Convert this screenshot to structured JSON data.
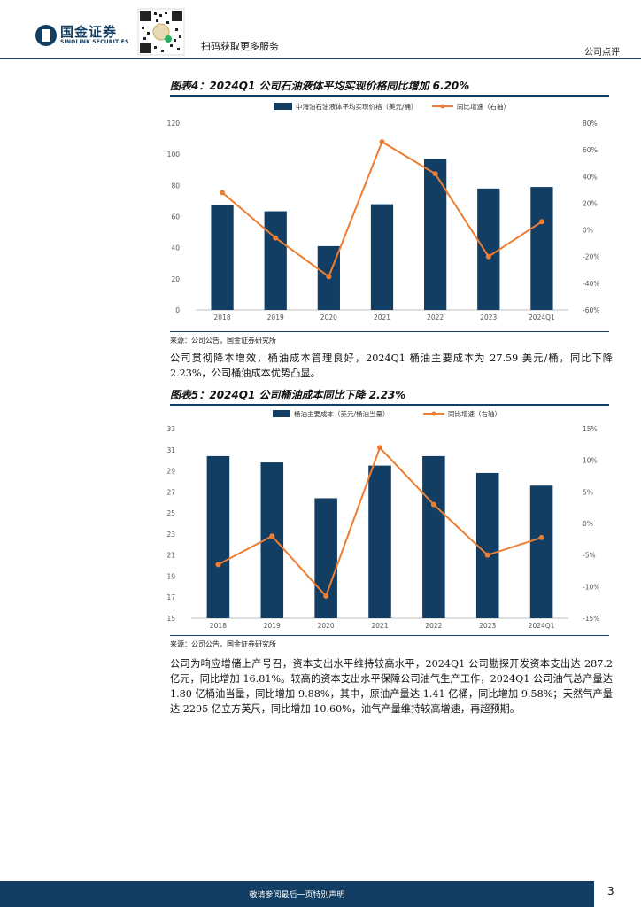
{
  "header": {
    "logo_cn": "国金证券",
    "logo_en": "SINOLINK SECURITIES",
    "scan_text": "扫码获取更多服务",
    "section_tag": "公司点评",
    "colors": {
      "brand": "#123e63",
      "accent": "#ed7d31"
    }
  },
  "figure4": {
    "title": "图表4：2024Q1 公司石油液体平均实现价格同比增加 6.20%",
    "source": "来源：公司公告，国金证券研究所",
    "chart_data": {
      "type": "bar",
      "categories": [
        "2018",
        "2019",
        "2020",
        "2021",
        "2022",
        "2023",
        "2024Q1"
      ],
      "series": [
        {
          "name": "中海油石油液体平均实现价格（美元/桶）",
          "type": "bar",
          "axis": "left",
          "color": "#123e63",
          "values": [
            67.2,
            63.4,
            41.0,
            67.9,
            97.0,
            78.0,
            79.0
          ]
        },
        {
          "name": "同比增速（右轴）",
          "type": "line",
          "axis": "right",
          "color": "#ed7d31",
          "values": [
            28,
            -6,
            -35,
            66,
            42,
            -20,
            6.2
          ]
        }
      ],
      "ylim": [
        0,
        120
      ],
      "y_ticks": [
        "0",
        "20",
        "40",
        "60",
        "80",
        "100",
        "120"
      ],
      "y2lim": [
        -60,
        80
      ],
      "y2_ticks": [
        "-60%",
        "-40%",
        "-20%",
        "0%",
        "20%",
        "40%",
        "60%",
        "80%"
      ],
      "legend": "top-center",
      "grid": false
    }
  },
  "para1": "公司贯彻降本增效，桶油成本管理良好，2024Q1 桶油主要成本为 27.59 美元/桶，同比下降 2.23%，公司桶油成本优势凸显。",
  "figure5": {
    "title": "图表5：2024Q1 公司桶油成本同比下降 2.23%",
    "source": "来源：公司公告，国金证券研究所",
    "chart_data": {
      "type": "bar",
      "categories": [
        "2018",
        "2019",
        "2020",
        "2021",
        "2022",
        "2023",
        "2024Q1"
      ],
      "series": [
        {
          "name": "桶油主要成本（美元/桶油当量）",
          "type": "bar",
          "axis": "left",
          "color": "#123e63",
          "values": [
            30.4,
            29.8,
            26.4,
            29.5,
            30.4,
            28.8,
            27.6
          ]
        },
        {
          "name": "同比增速（右轴）",
          "type": "line",
          "axis": "right",
          "color": "#ed7d31",
          "values": [
            -6.5,
            -2.0,
            -11.5,
            12.0,
            3.0,
            -5.0,
            -2.23
          ]
        }
      ],
      "ylim": [
        15,
        33
      ],
      "y_ticks": [
        "15",
        "17",
        "19",
        "21",
        "23",
        "25",
        "27",
        "29",
        "31",
        "33"
      ],
      "y2lim": [
        -15,
        15
      ],
      "y2_ticks": [
        "-15%",
        "-10%",
        "-5%",
        "0%",
        "5%",
        "10%",
        "15%"
      ],
      "legend": "top-center",
      "grid": false
    }
  },
  "para2": "公司为响应增储上产号召，资本支出水平维持较高水平，2024Q1 公司勘探开发资本支出达 287.2 亿元，同比增加 16.81%。较高的资本支出水平保障公司油气生产工作，2024Q1 公司油气总产量达 1.80 亿桶油当量，同比增加 9.88%，其中，原油产量达 1.41 亿桶，同比增加 9.58%；天然气产量达 2295 亿立方英尺，同比增加 10.60%，油气产量维持较高增速，再超预期。",
  "footer": {
    "disclaimer": "敬请参阅最后一页特别声明",
    "page_number": "3"
  }
}
